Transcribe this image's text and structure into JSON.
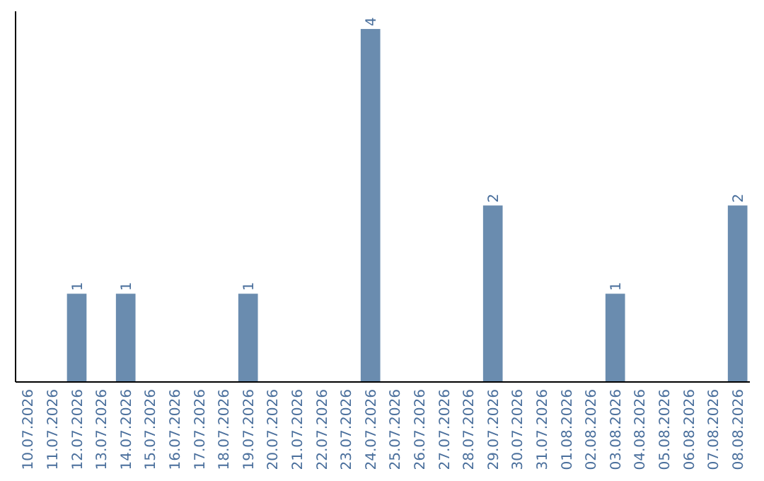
{
  "chart_data": {
    "type": "bar",
    "categories": [
      "10.07.2026",
      "11.07.2026",
      "12.07.2026",
      "13.07.2026",
      "14.07.2026",
      "15.07.2026",
      "16.07.2026",
      "17.07.2026",
      "18.07.2026",
      "19.07.2026",
      "20.07.2026",
      "21.07.2026",
      "22.07.2026",
      "23.07.2026",
      "24.07.2026",
      "25.07.2026",
      "26.07.2026",
      "27.07.2026",
      "28.07.2026",
      "29.07.2026",
      "30.07.2026",
      "31.07.2026",
      "01.08.2026",
      "02.08.2026",
      "03.08.2026",
      "04.08.2026",
      "05.08.2026",
      "06.08.2026",
      "07.08.2026",
      "08.08.2026"
    ],
    "values": [
      0,
      0,
      1,
      0,
      1,
      0,
      0,
      0,
      0,
      1,
      0,
      0,
      0,
      0,
      4,
      0,
      0,
      0,
      0,
      2,
      0,
      0,
      0,
      0,
      1,
      0,
      0,
      0,
      0,
      2
    ],
    "value_labels": [
      null,
      null,
      "1",
      null,
      "1",
      null,
      null,
      null,
      null,
      "1",
      null,
      null,
      null,
      null,
      "4",
      null,
      null,
      null,
      null,
      "2",
      null,
      null,
      null,
      null,
      "1",
      null,
      null,
      null,
      null,
      "2"
    ],
    "color": "#6a8caf",
    "ylim": [
      0,
      4.2
    ],
    "tick_labels": "x"
  }
}
